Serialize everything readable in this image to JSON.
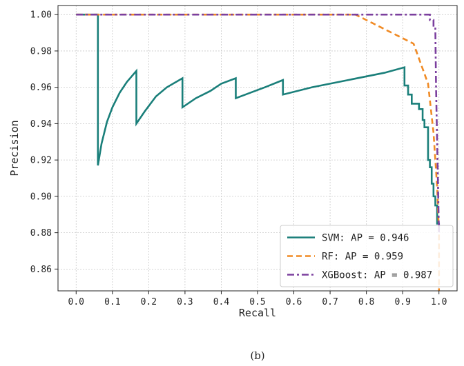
{
  "caption": "(b)",
  "chart_data": {
    "type": "line",
    "title": "",
    "xlabel": "Recall",
    "ylabel": "Precision",
    "xlim": [
      -0.05,
      1.05
    ],
    "ylim": [
      0.848,
      1.005
    ],
    "xticks": [
      0.0,
      0.1,
      0.2,
      0.3,
      0.4,
      0.5,
      0.6,
      0.7,
      0.8,
      0.9,
      1.0
    ],
    "xtick_labels": [
      "0.0",
      "0.1",
      "0.2",
      "0.3",
      "0.4",
      "0.5",
      "0.6",
      "0.7",
      "0.8",
      "0.9",
      "1.0"
    ],
    "yticks": [
      0.86,
      0.88,
      0.9,
      0.92,
      0.94,
      0.96,
      0.98,
      1.0
    ],
    "ytick_labels": [
      "0.86",
      "0.88",
      "0.90",
      "0.92",
      "0.94",
      "0.96",
      "0.98",
      "1.00"
    ],
    "grid": true,
    "legend_position": "bottom-right",
    "series": [
      {
        "name": "SVM: AP = 0.946",
        "color": "#1a7f7a",
        "dash": "solid",
        "points": [
          [
            0.0,
            1.0
          ],
          [
            0.06,
            1.0
          ],
          [
            0.06,
            0.917
          ],
          [
            0.07,
            0.929
          ],
          [
            0.085,
            0.941
          ],
          [
            0.1,
            0.949
          ],
          [
            0.12,
            0.957
          ],
          [
            0.14,
            0.963
          ],
          [
            0.166,
            0.969
          ],
          [
            0.166,
            0.94
          ],
          [
            0.19,
            0.947
          ],
          [
            0.22,
            0.955
          ],
          [
            0.25,
            0.96
          ],
          [
            0.293,
            0.965
          ],
          [
            0.293,
            0.949
          ],
          [
            0.33,
            0.954
          ],
          [
            0.37,
            0.958
          ],
          [
            0.4,
            0.962
          ],
          [
            0.44,
            0.965
          ],
          [
            0.44,
            0.954
          ],
          [
            0.48,
            0.957
          ],
          [
            0.52,
            0.96
          ],
          [
            0.57,
            0.964
          ],
          [
            0.57,
            0.956
          ],
          [
            0.65,
            0.96
          ],
          [
            0.75,
            0.964
          ],
          [
            0.85,
            0.968
          ],
          [
            0.905,
            0.971
          ],
          [
            0.905,
            0.961
          ],
          [
            0.915,
            0.961
          ],
          [
            0.915,
            0.956
          ],
          [
            0.925,
            0.956
          ],
          [
            0.925,
            0.951
          ],
          [
            0.945,
            0.951
          ],
          [
            0.945,
            0.948
          ],
          [
            0.955,
            0.948
          ],
          [
            0.955,
            0.942
          ],
          [
            0.96,
            0.942
          ],
          [
            0.96,
            0.938
          ],
          [
            0.97,
            0.938
          ],
          [
            0.97,
            0.92
          ],
          [
            0.975,
            0.92
          ],
          [
            0.975,
            0.916
          ],
          [
            0.98,
            0.916
          ],
          [
            0.98,
            0.907
          ],
          [
            0.985,
            0.907
          ],
          [
            0.985,
            0.9
          ],
          [
            0.99,
            0.9
          ],
          [
            0.99,
            0.895
          ],
          [
            0.995,
            0.895
          ],
          [
            0.995,
            0.885
          ],
          [
            1.0,
            0.885
          ],
          [
            1.0,
            0.883
          ]
        ]
      },
      {
        "name": "RF: AP = 0.959",
        "color": "#f08a24",
        "dash": "dashed",
        "points": [
          [
            0.0,
            1.0
          ],
          [
            0.77,
            1.0
          ],
          [
            0.93,
            0.984
          ],
          [
            0.97,
            0.962
          ],
          [
            0.985,
            0.935
          ],
          [
            0.995,
            0.905
          ],
          [
            1.0,
            0.88
          ],
          [
            1.0,
            0.843
          ]
        ]
      },
      {
        "name": "XGBoost: AP = 0.987",
        "color": "#7b3f9e",
        "dash": "dashdot",
        "points": [
          [
            0.0,
            1.0
          ],
          [
            0.975,
            1.0
          ],
          [
            0.975,
            0.997
          ],
          [
            0.985,
            0.997
          ],
          [
            0.985,
            0.993
          ],
          [
            0.99,
            0.993
          ],
          [
            0.992,
            0.96
          ],
          [
            0.995,
            0.93
          ],
          [
            0.998,
            0.9
          ],
          [
            1.0,
            0.88
          ],
          [
            1.0,
            0.885
          ]
        ]
      }
    ]
  }
}
